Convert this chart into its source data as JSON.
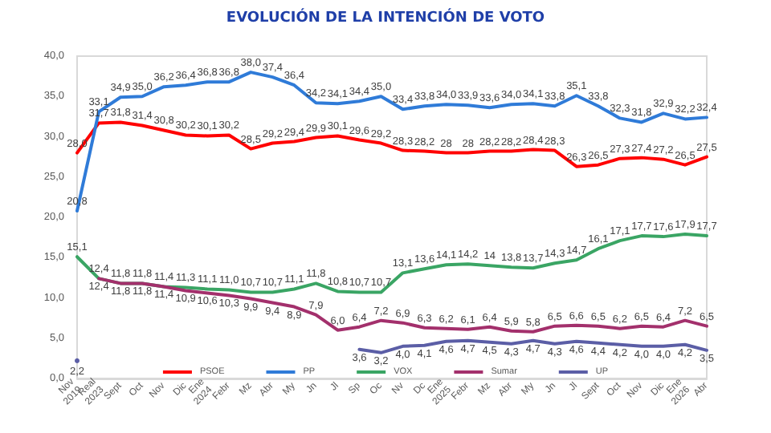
{
  "chart_data": {
    "type": "line",
    "title": "EVOLUCIÓN DE LA INTENCIÓN DE VOTO",
    "categories": [
      "Nov\n2019",
      "Real\n2023",
      "Sept",
      "Oct",
      "Nov",
      "Dic",
      "Ene\n2024",
      "Febr",
      "Mz",
      "Abr",
      "My",
      "Jn",
      "Jl",
      "Sp",
      "Oc",
      "Nv",
      "Dc",
      "Ene\n2025",
      "Febr",
      "Mz",
      "Abr",
      "My",
      "Jn",
      "Jl",
      "Sept",
      "Oct",
      "Nov",
      "Dic",
      "Ene\n2026",
      "Abr"
    ],
    "series": [
      {
        "name": "PSOE",
        "color": "#ff0000",
        "values": [
          28.0,
          31.7,
          31.8,
          31.4,
          30.8,
          30.2,
          30.1,
          30.2,
          28.5,
          29.2,
          29.4,
          29.9,
          30.1,
          29.6,
          29.2,
          28.3,
          28.2,
          28,
          28,
          28.2,
          28.2,
          28.4,
          28.3,
          26.3,
          26.5,
          27.3,
          27.4,
          27.2,
          26.5,
          27.5
        ],
        "value_labels": [
          "28,0",
          "31,7",
          "31,8",
          "31,4",
          "30,8",
          "30,2",
          "30,1",
          "30,2",
          "28,5",
          "29,2",
          "29,4",
          "29,9",
          "30,1",
          "29,6",
          "29,2",
          "28,3",
          "28,2",
          "28",
          "28",
          "28,2",
          "28,2",
          "28,4",
          "28,3",
          "26,3",
          "26,5",
          "27,3",
          "27,4",
          "27,2",
          "26,5",
          "27,5"
        ]
      },
      {
        "name": "PP",
        "color": "#2f7bd8",
        "values": [
          20.8,
          33.1,
          34.9,
          35.0,
          36.2,
          36.4,
          36.8,
          36.8,
          38.0,
          37.4,
          36.4,
          34.2,
          34.1,
          34.4,
          35.0,
          33.4,
          33.8,
          34.0,
          33.9,
          33.6,
          34.0,
          34.1,
          33.8,
          35.1,
          33.8,
          32.3,
          31.8,
          32.9,
          32.2,
          32.4
        ],
        "value_labels": [
          "20,8",
          "33,1",
          "34,9",
          "35,0",
          "36,2",
          "36,4",
          "36,8",
          "36,8",
          "38,0",
          "37,4",
          "36,4",
          "34,2",
          "34,1",
          "34,4",
          "35,0",
          "33,4",
          "33,8",
          "34,0",
          "33,9",
          "33,6",
          "34,0",
          "34,1",
          "33,8",
          "35,1",
          "33,8",
          "32,3",
          "31,8",
          "32,9",
          "32,2",
          "32,4"
        ]
      },
      {
        "name": "VOX",
        "color": "#3aa564",
        "values": [
          15.1,
          12.4,
          11.8,
          11.8,
          11.4,
          11.3,
          11.1,
          11.0,
          10.7,
          10.7,
          11.1,
          11.8,
          10.8,
          10.7,
          10.7,
          13.1,
          13.6,
          14.1,
          14.2,
          14,
          13.8,
          13.7,
          14.3,
          14.7,
          16.1,
          17.1,
          17.7,
          17.6,
          17.9,
          17.7
        ],
        "value_labels": [
          "15,1",
          "12,4",
          "11,8",
          "11,8",
          "11,4",
          "11,3",
          "11,1",
          "11,0",
          "10,7",
          "10,7",
          "11,1",
          "11,8",
          "10,8",
          "10,7",
          "10,7",
          "13,1",
          "13,6",
          "14,1",
          "14,2",
          "14",
          "13,8",
          "13,7",
          "14,3",
          "14,7",
          "16,1",
          "17,1",
          "17,7",
          "17,6",
          "17,9",
          "17,7"
        ]
      },
      {
        "name": "Sumar",
        "color": "#a3306c",
        "values": [
          null,
          12.4,
          11.8,
          11.8,
          11.4,
          10.9,
          10.6,
          10.3,
          9.9,
          9.4,
          8.9,
          7.9,
          6.0,
          6.4,
          7.2,
          6.9,
          6.3,
          6.2,
          6.1,
          6.4,
          5.9,
          5.8,
          6.5,
          6.6,
          6.5,
          6.2,
          6.5,
          6.4,
          7.2,
          6.5
        ],
        "value_labels": [
          null,
          "12,4",
          "11,8",
          "11,8",
          "11,4",
          "10,9",
          "10,6",
          "10,3",
          "9,9",
          "9,4",
          "8,9",
          "7,9",
          "6,0",
          "6,4",
          "7,2",
          "6,9",
          "6,3",
          "6,2",
          "6,1",
          "6,4",
          "5,9",
          "5,8",
          "6,5",
          "6,6",
          "6,5",
          "6,2",
          "6,5",
          "6,4",
          "7,2",
          "6,5"
        ]
      },
      {
        "name": "UP",
        "color": "#5b5ea6",
        "values": [
          2.2,
          null,
          null,
          null,
          null,
          null,
          null,
          null,
          null,
          null,
          null,
          null,
          null,
          3.6,
          3.2,
          4.0,
          4.1,
          4.6,
          4.7,
          4.5,
          4.3,
          4.7,
          4.3,
          4.6,
          4.4,
          4.2,
          4.0,
          4.0,
          4.2,
          3.5
        ],
        "value_labels": [
          "2,2",
          null,
          null,
          null,
          null,
          null,
          null,
          null,
          null,
          null,
          null,
          null,
          null,
          "3,6",
          "3,2",
          "4,0",
          "4,1",
          "4,6",
          "4,7",
          "4,5",
          "4,3",
          "4,7",
          "4,3",
          "4,6",
          "4,4",
          "4,2",
          "4,0",
          "4,0",
          "4,2",
          "3,5"
        ]
      }
    ],
    "ylim": [
      0,
      40
    ],
    "yticks": [
      {
        "value": 0,
        "label": "0,0"
      },
      {
        "value": 5,
        "label": "5,0"
      },
      {
        "value": 10,
        "label": "10,0"
      },
      {
        "value": 15,
        "label": "15,0"
      },
      {
        "value": 20,
        "label": "20,0"
      },
      {
        "value": 25,
        "label": "25,0"
      },
      {
        "value": 30,
        "label": "30,0"
      },
      {
        "value": 35,
        "label": "35,0"
      },
      {
        "value": 40,
        "label": "40,0"
      }
    ],
    "legend": "bottom",
    "marker": "none"
  }
}
